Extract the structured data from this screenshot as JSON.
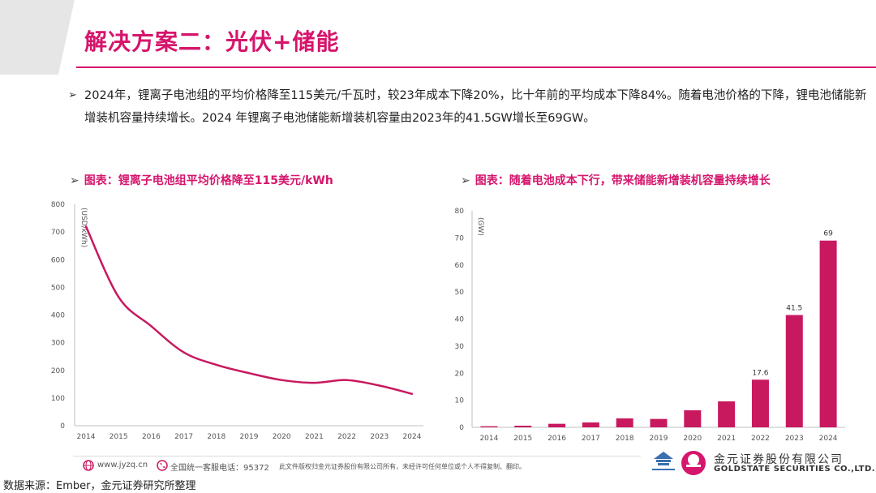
{
  "header": {
    "title": "解决方案二：光伏+储能"
  },
  "bullet": {
    "marker": "➢",
    "text": "2024年，锂离子电池组的平均价格降至115美元/千瓦时，较23年成本下降20%，比十年前的平均成本下降84%。随着电池价格的下降，锂电池储能新增装机容量持续增长。2024 年锂离子电池储能新增装机容量由2023年的41.5GW增长至69GW。"
  },
  "charts": {
    "left_title": "图表：锂离子电池组平均价格降至115美元/kWh",
    "right_title": "图表：随着电池成本下行，带来储能新增装机容量持续增长",
    "arrow": "➢"
  },
  "chart_data": [
    {
      "type": "line",
      "title": "图表：锂离子电池组平均价格降至115美元/kWh",
      "ylabel": "(USD/kWh)",
      "x": [
        "2014",
        "2015",
        "2016",
        "2017",
        "2018",
        "2019",
        "2020",
        "2021",
        "2022",
        "2023",
        "2024"
      ],
      "series": [
        {
          "values": [
            720,
            465,
            360,
            265,
            220,
            190,
            165,
            155,
            165,
            145,
            115
          ]
        }
      ],
      "ylim": [
        0,
        800
      ],
      "yticks": [
        0,
        100,
        200,
        300,
        400,
        500,
        600,
        700,
        800
      ],
      "color": "#c8195f",
      "grid": false
    },
    {
      "type": "bar",
      "title": "图表：随着电池成本下行，带来储能新增装机容量持续增长",
      "ylabel": "(GW)",
      "categories": [
        "2014",
        "2015",
        "2016",
        "2017",
        "2018",
        "2019",
        "2020",
        "2021",
        "2022",
        "2023",
        "2024"
      ],
      "values": [
        0.4,
        0.6,
        1.3,
        1.8,
        3.3,
        3.1,
        6.3,
        9.6,
        17.6,
        41.5,
        69
      ],
      "data_labels": {
        "8": "17.6",
        "9": "41.5",
        "10": "69"
      },
      "ylim": [
        0,
        80
      ],
      "yticks": [
        0,
        10,
        20,
        30,
        40,
        50,
        60,
        70,
        80
      ],
      "color": "#c8195f",
      "grid": false
    }
  ],
  "footer": {
    "website": "www.jyzq.cn",
    "hotline": "全国统一客服电话：95372",
    "disclaimer": "此文件版权归金元证券股份有限公司所有，未经许可任何单位或个人不得复制、翻印。",
    "company_cn": "金元证券股份有限公司",
    "company_en": "GOLDSTATE SECURITIES CO.,LTD."
  },
  "source": "数据来源：Ember，金元证券研究所整理",
  "colors": {
    "accent": "#d6156c",
    "bar": "#c8195f"
  }
}
